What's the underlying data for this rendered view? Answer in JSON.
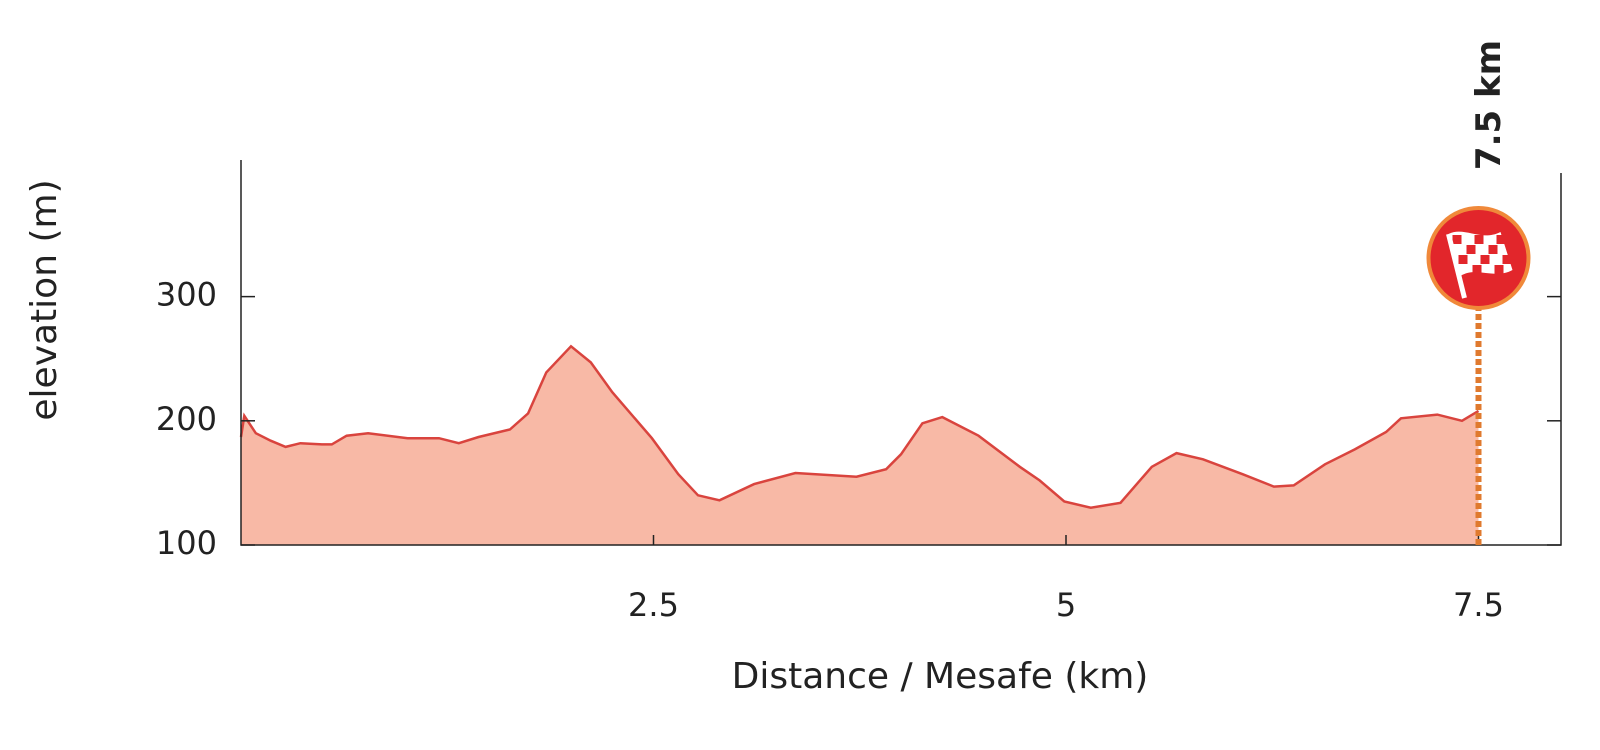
{
  "chart_data": {
    "type": "area",
    "y_label": "elevation (m)",
    "x_label": "Distance / Mesafe (km)",
    "finish_label": "7.5 km",
    "xlim": [
      0,
      8
    ],
    "ylim": [
      100,
      410
    ],
    "xticks": [
      2.5,
      5,
      7.5
    ],
    "yticks": [
      100,
      200,
      300
    ],
    "x": [
      0,
      0.02,
      0.09,
      0.18,
      0.27,
      0.36,
      0.49,
      0.55,
      0.64,
      0.77,
      1.01,
      1.2,
      1.32,
      1.44,
      1.63,
      1.74,
      1.85,
      2.0,
      2.12,
      2.25,
      2.49,
      2.65,
      2.77,
      2.9,
      3.11,
      3.36,
      3.73,
      3.91,
      4.0,
      4.13,
      4.25,
      4.47,
      4.72,
      4.84,
      4.99,
      5.15,
      5.33,
      5.52,
      5.67,
      5.83,
      6.07,
      6.26,
      6.38,
      6.57,
      6.75,
      6.94,
      7.03,
      7.25,
      7.4,
      7.5
    ],
    "series": [
      {
        "color": "#d9443e",
        "fill": "#f8b9a6",
        "values": [
          187,
          204,
          190,
          184,
          179,
          182,
          181,
          181,
          188,
          190,
          186,
          186,
          182,
          187,
          193,
          206,
          239,
          260,
          247,
          223,
          186,
          157,
          140,
          136,
          149,
          158,
          155,
          161,
          173,
          198,
          203,
          188,
          163,
          152,
          135,
          130,
          134,
          163,
          174,
          169,
          157,
          147,
          148,
          165,
          177,
          191,
          202,
          205,
          200,
          208
        ]
      }
    ]
  }
}
